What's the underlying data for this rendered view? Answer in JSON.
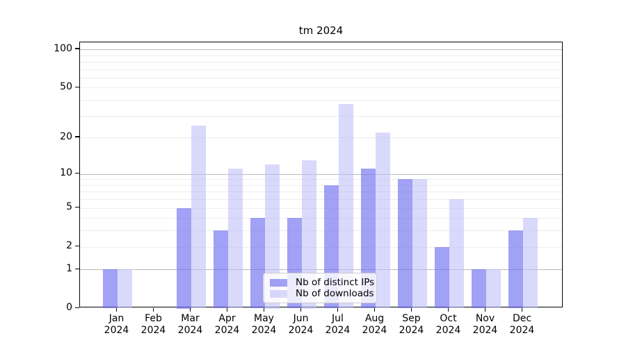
{
  "chart_data": {
    "type": "bar",
    "title": "tm 2024",
    "xlabel": "",
    "ylabel": "",
    "yscale": "log1p",
    "ylim": [
      0,
      112
    ],
    "yticks": [
      0,
      1,
      2,
      5,
      10,
      20,
      50,
      100
    ],
    "minor_grid_values": [
      2,
      3,
      4,
      5,
      6,
      7,
      8,
      9,
      20,
      30,
      40,
      50,
      60,
      70,
      80,
      90
    ],
    "major_grid_values": [
      1,
      10,
      100
    ],
    "grid": "on",
    "legend_position": "lower center",
    "categories": [
      "Jan 2024",
      "Feb 2024",
      "Mar 2024",
      "Apr 2024",
      "May 2024",
      "Jun 2024",
      "Jul 2024",
      "Aug 2024",
      "Sep 2024",
      "Oct 2024",
      "Nov 2024",
      "Dec 2024"
    ],
    "series": [
      {
        "name": "Nb of distinct IPs",
        "color": "rgba(110,110,240,0.65)",
        "values": [
          1,
          0,
          5,
          3,
          4,
          4,
          8,
          11,
          9,
          2,
          1,
          3
        ]
      },
      {
        "name": "Nb of downloads",
        "color": "rgba(190,190,248,0.58)",
        "values": [
          1,
          0,
          25,
          11,
          12,
          13,
          37,
          22,
          9,
          6,
          1,
          4
        ]
      }
    ],
    "colors": {
      "major_gridline": "#b9b9b9",
      "minor_gridline": "#ededed",
      "axis": "#000000",
      "background": "#ffffff"
    }
  }
}
